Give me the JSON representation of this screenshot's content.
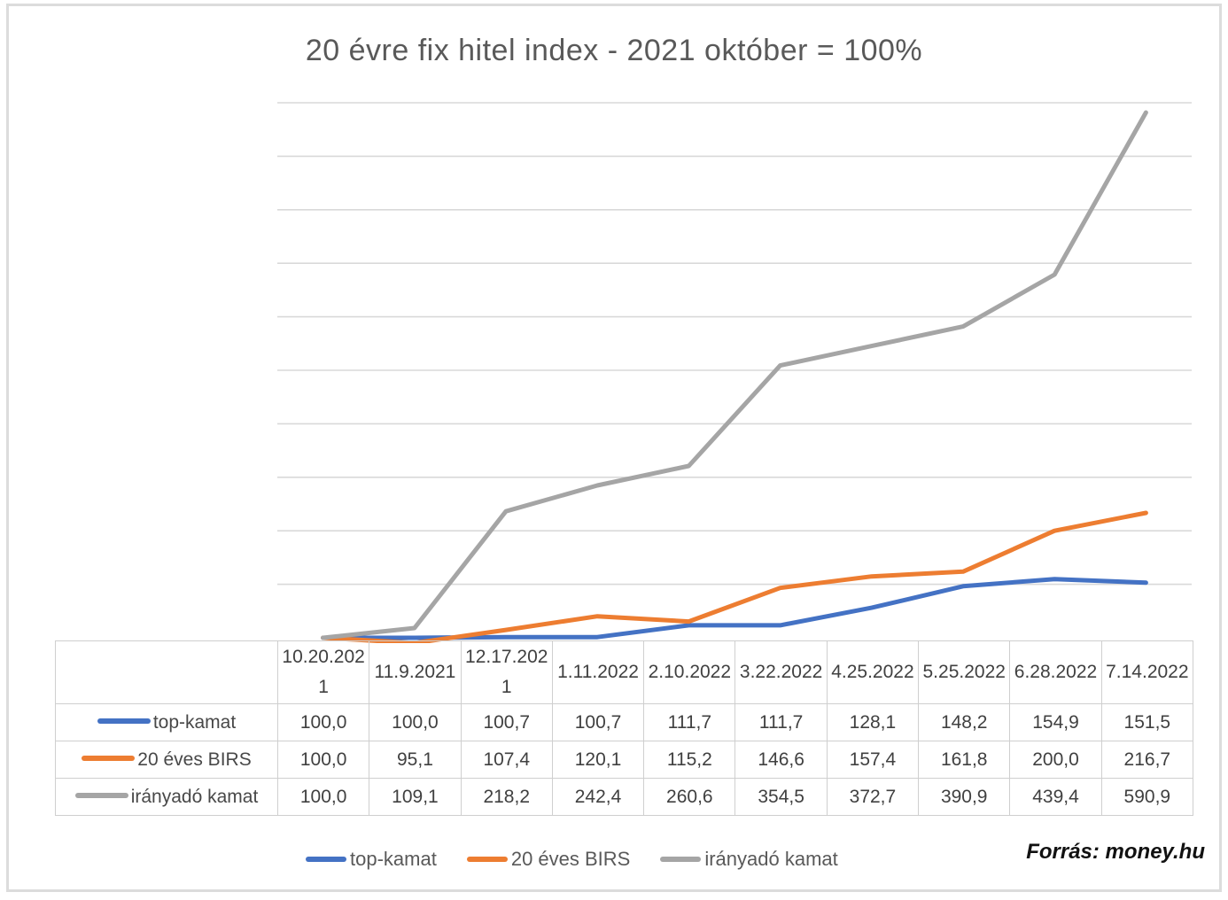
{
  "title": "20 évre fix hitel index - 2021 október = 100%",
  "source": "Forrás: money.hu",
  "colors": {
    "blue": "#4472C4",
    "orange": "#ED7D31",
    "gray": "#A5A5A5",
    "gridline": "#D9D9D9",
    "table_border": "#CFCFCF",
    "text": "#595959"
  },
  "chart_data": {
    "type": "line",
    "title": "20 évre fix hitel index - 2021 október = 100%",
    "categories": [
      "10.20.2021",
      "11.9.2021",
      "12.17.2021",
      "1.11.2022",
      "2.10.2022",
      "3.22.2022",
      "4.25.2022",
      "5.25.2022",
      "6.28.2022",
      "7.14.2022"
    ],
    "series": [
      {
        "name": "top-kamat",
        "color": "#4472C4",
        "values": [
          100.0,
          100.0,
          100.7,
          100.7,
          111.7,
          111.7,
          128.1,
          148.2,
          154.9,
          151.5
        ]
      },
      {
        "name": "20 éves BIRS",
        "color": "#ED7D31",
        "values": [
          100.0,
          95.1,
          107.4,
          120.1,
          115.2,
          146.6,
          157.4,
          161.8,
          200.0,
          216.7
        ]
      },
      {
        "name": "irányadó kamat",
        "color": "#A5A5A5",
        "values": [
          100.0,
          109.1,
          218.2,
          242.4,
          260.6,
          354.5,
          372.7,
          390.9,
          439.4,
          590.9
        ]
      }
    ],
    "xlabel": "",
    "ylabel": "",
    "ylim": [
      100,
      600
    ],
    "y_major_unit": 50,
    "y_tick_labels": "hidden",
    "grid": true,
    "legend_position": "bottom",
    "data_table_shown": true
  },
  "table": {
    "headers": [
      "10.20.2021",
      "11.9.2021",
      "12.17.2021",
      "1.11.2022",
      "2.10.2022",
      "3.22.2022",
      "4.25.2022",
      "5.25.2022",
      "6.28.2022",
      "7.14.2022"
    ],
    "rows": [
      {
        "label": "top-kamat",
        "values": [
          "100,0",
          "100,0",
          "100,7",
          "100,7",
          "111,7",
          "111,7",
          "128,1",
          "148,2",
          "154,9",
          "151,5"
        ]
      },
      {
        "label": "20 éves BIRS",
        "values": [
          "100,0",
          "95,1",
          "107,4",
          "120,1",
          "115,2",
          "146,6",
          "157,4",
          "161,8",
          "200,0",
          "216,7"
        ]
      },
      {
        "label": "irányadó kamat",
        "values": [
          "100,0",
          "109,1",
          "218,2",
          "242,4",
          "260,6",
          "354,5",
          "372,7",
          "390,9",
          "439,4",
          "590,9"
        ]
      }
    ]
  },
  "legend": {
    "items": [
      "top-kamat",
      "20 éves BIRS",
      "irányadó kamat"
    ]
  }
}
